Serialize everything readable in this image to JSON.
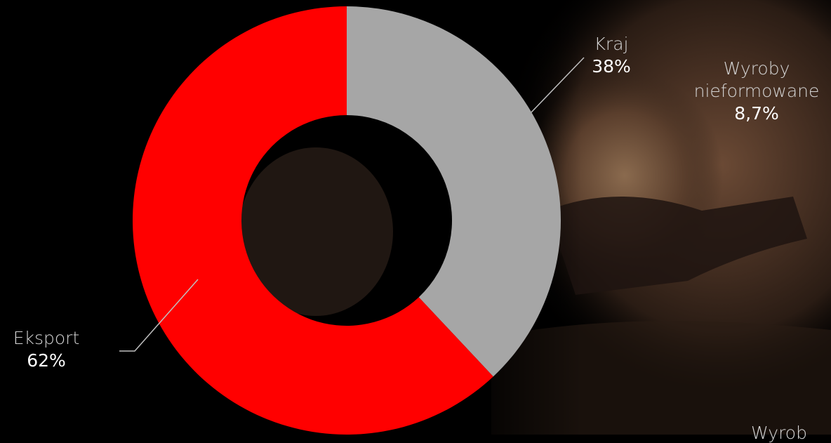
{
  "chart_data": {
    "type": "pie",
    "style": "donut",
    "categories": [
      "Kraj",
      "Eksport"
    ],
    "values": [
      38,
      62
    ],
    "value_labels": [
      "38%",
      "62%"
    ],
    "colors": [
      "#a6a6a6",
      "#ff0000"
    ],
    "title": "",
    "legend": "none"
  },
  "labels": {
    "kraj_name": "Kraj",
    "kraj_pct": "38%",
    "eksport_name": "Eksport",
    "eksport_pct": "62%"
  },
  "side_labels": {
    "nieformowane_line1": "Wyroby",
    "nieformowane_line2": "nieformowane",
    "nieformowane_pct": "8,7%",
    "clipped_text": "Wyrob"
  },
  "colors": {
    "background": "#000000",
    "leader_line": "#bfbfbf"
  }
}
